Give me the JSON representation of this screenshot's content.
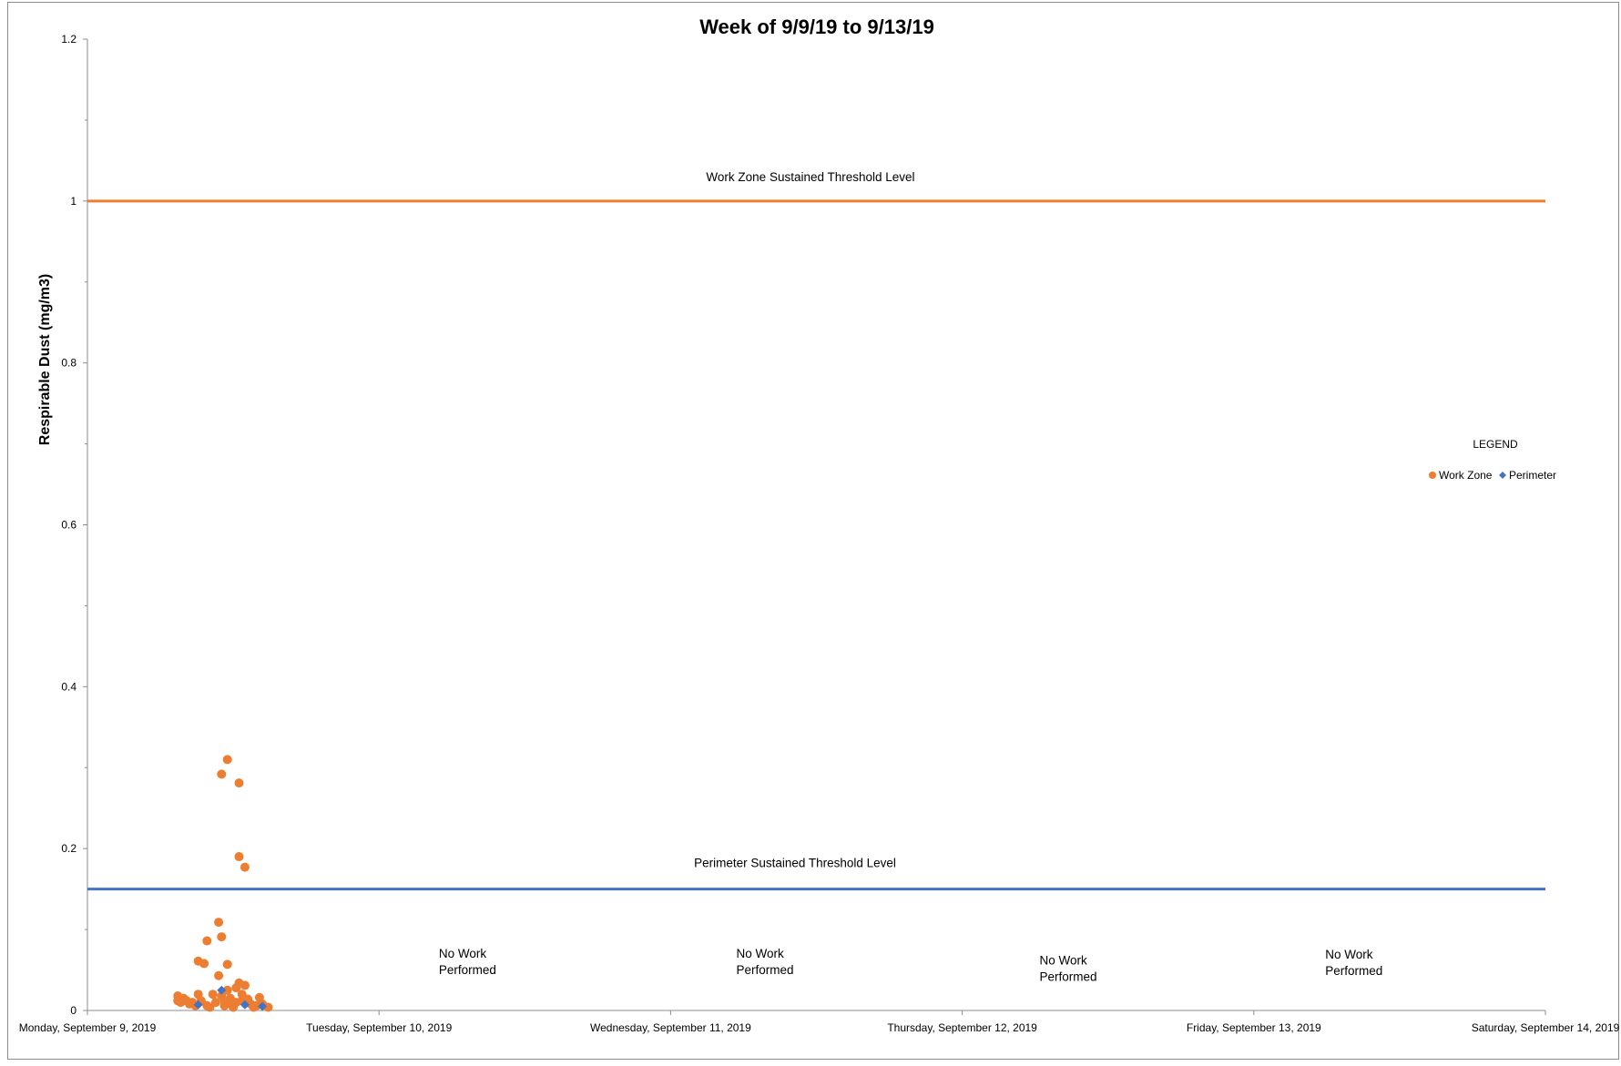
{
  "chart_data": {
    "type": "scatter",
    "title": "Week of 9/9/19 to 9/13/19",
    "xlabel": "",
    "ylabel": "Respirable Dust (mg/m3)",
    "ylim": [
      0,
      1.2
    ],
    "yticks": [
      "0",
      "0.2",
      "0.4",
      "0.6",
      "0.8",
      "1",
      "1.2"
    ],
    "xlim_days": [
      0,
      5
    ],
    "xtick_labels": [
      "Monday, September 9, 2019",
      "Tuesday, September 10, 2019",
      "Wednesday, September 11, 2019",
      "Thursday, September 12, 2019",
      "Friday, September 13, 2019",
      "Saturday, September 14, 2019"
    ],
    "thresholds": [
      {
        "label": "Work Zone Sustained Threshold Level",
        "value": 1.0,
        "color": "#ed7d31"
      },
      {
        "label": "Perimeter Sustained Threshold Level",
        "value": 0.15,
        "color": "#4472c4"
      }
    ],
    "annotations": [
      {
        "lines": [
          "No Work",
          "Performed"
        ],
        "day": 1.33,
        "value": 0.065
      },
      {
        "lines": [
          "No Work",
          "Performed"
        ],
        "day": 2.35,
        "value": 0.065
      },
      {
        "lines": [
          "No Work",
          "Performed"
        ],
        "day": 3.39,
        "value": 0.057
      },
      {
        "lines": [
          "No Work",
          "Performed"
        ],
        "day": 4.37,
        "value": 0.064
      }
    ],
    "legend": {
      "title": "LEGEND",
      "position": "right"
    },
    "series": [
      {
        "name": "Work Zone",
        "marker": "circle",
        "color": "#ed7d31",
        "points": [
          [
            0.31,
            0.018
          ],
          [
            0.31,
            0.012
          ],
          [
            0.32,
            0.01
          ],
          [
            0.33,
            0.015
          ],
          [
            0.34,
            0.012
          ],
          [
            0.35,
            0.008
          ],
          [
            0.36,
            0.01
          ],
          [
            0.37,
            0.006
          ],
          [
            0.38,
            0.02
          ],
          [
            0.38,
            0.061
          ],
          [
            0.39,
            0.012
          ],
          [
            0.4,
            0.058
          ],
          [
            0.41,
            0.086
          ],
          [
            0.41,
            0.006
          ],
          [
            0.42,
            0.004
          ],
          [
            0.43,
            0.02
          ],
          [
            0.44,
            0.01
          ],
          [
            0.45,
            0.043
          ],
          [
            0.45,
            0.109
          ],
          [
            0.46,
            0.091
          ],
          [
            0.46,
            0.018
          ],
          [
            0.46,
            0.292
          ],
          [
            0.47,
            0.012
          ],
          [
            0.47,
            0.006
          ],
          [
            0.48,
            0.31
          ],
          [
            0.48,
            0.057
          ],
          [
            0.48,
            0.025
          ],
          [
            0.49,
            0.015
          ],
          [
            0.49,
            0.008
          ],
          [
            0.5,
            0.004
          ],
          [
            0.51,
            0.01
          ],
          [
            0.51,
            0.028
          ],
          [
            0.52,
            0.281
          ],
          [
            0.52,
            0.19
          ],
          [
            0.52,
            0.034
          ],
          [
            0.53,
            0.02
          ],
          [
            0.53,
            0.012
          ],
          [
            0.54,
            0.177
          ],
          [
            0.54,
            0.031
          ],
          [
            0.55,
            0.014
          ],
          [
            0.56,
            0.008
          ],
          [
            0.57,
            0.004
          ],
          [
            0.58,
            0.006
          ],
          [
            0.59,
            0.016
          ],
          [
            0.6,
            0.008
          ],
          [
            0.62,
            0.004
          ]
        ]
      },
      {
        "name": "Perimeter",
        "marker": "diamond",
        "color": "#4472c4",
        "points": [
          [
            0.38,
            0.007
          ],
          [
            0.46,
            0.025
          ],
          [
            0.54,
            0.007
          ],
          [
            0.6,
            0.005
          ]
        ]
      }
    ]
  }
}
